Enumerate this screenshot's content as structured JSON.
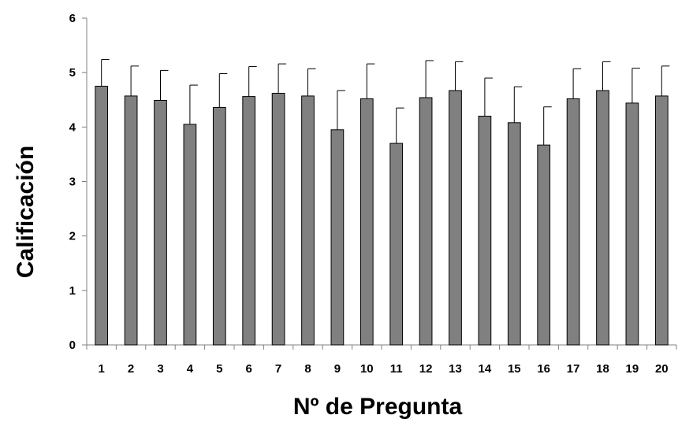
{
  "chart_data": {
    "type": "bar",
    "title": "",
    "xlabel": "Nº de Pregunta",
    "ylabel": "Calificación",
    "ylim": [
      0,
      6
    ],
    "yticks": [
      0,
      1,
      2,
      3,
      4,
      5,
      6
    ],
    "grid": false,
    "legend": "none",
    "categories": [
      "1",
      "2",
      "3",
      "4",
      "5",
      "6",
      "7",
      "8",
      "9",
      "10",
      "11",
      "12",
      "13",
      "14",
      "15",
      "16",
      "17",
      "18",
      "19",
      "20"
    ],
    "values": [
      4.75,
      4.57,
      4.49,
      4.05,
      4.36,
      4.56,
      4.62,
      4.57,
      3.95,
      4.52,
      3.7,
      4.54,
      4.67,
      4.2,
      4.08,
      3.67,
      4.52,
      4.67,
      4.44,
      4.57
    ],
    "error_plus": [
      0.49,
      0.55,
      0.55,
      0.72,
      0.62,
      0.55,
      0.54,
      0.5,
      0.72,
      0.64,
      0.65,
      0.68,
      0.53,
      0.7,
      0.66,
      0.7,
      0.55,
      0.53,
      0.64,
      0.55
    ],
    "colors": {
      "bar": "#808080",
      "bar_stroke": "#000000",
      "axis": "#808080"
    }
  }
}
